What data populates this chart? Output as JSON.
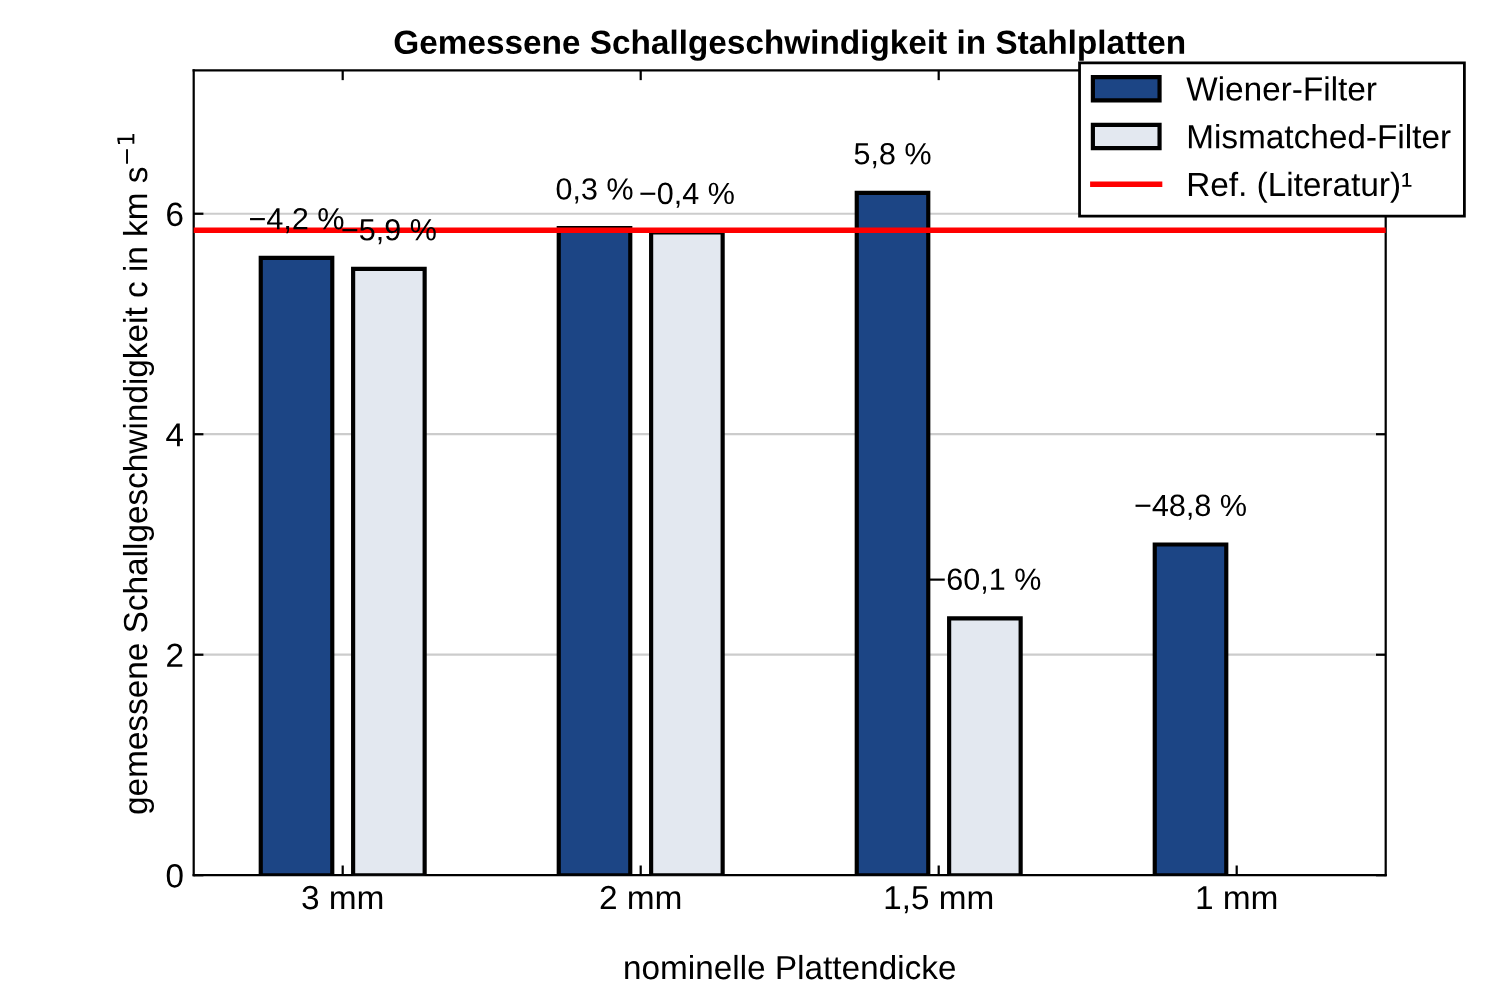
{
  "chart_data": {
    "type": "bar",
    "title": "Gemessene Schallgeschwindigkeit in Stahlplatten",
    "xlabel": "nominelle Plattendicke",
    "ylabel": "gemessene Schallgeschwindigkeit c in km s$^{−1}$",
    "categories": [
      "3 mm",
      "2 mm",
      "1,5 mm",
      "1 mm"
    ],
    "series": [
      {
        "name": "Wiener-Filter",
        "color": "#1c4585",
        "values": [
          5.6,
          5.87,
          6.19,
          3.0
        ]
      },
      {
        "name": "Mismatched-Filter",
        "color": "#e3e8f0",
        "values": [
          5.5,
          5.83,
          2.33,
          null
        ]
      }
    ],
    "annotations": [
      "−4,2 %",
      "−5,9 %",
      "0,3 %",
      "−0,4 %",
      "5,8 %",
      "−60,1 %",
      "−48,8 %"
    ],
    "ref_lines": [
      {
        "axis": "y",
        "value": 5.85,
        "label": "Ref. (Literatur)¹",
        "color": "#ff0000"
      }
    ],
    "ylim": [
      0,
      7.3
    ],
    "yticks": [
      0,
      2,
      4,
      6
    ],
    "grid": "y",
    "legend": "top right"
  }
}
